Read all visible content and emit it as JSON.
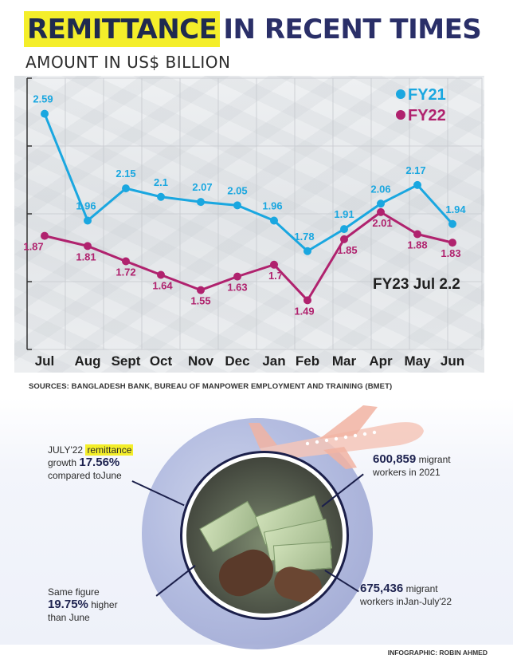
{
  "title": {
    "highlight": "REMITTANCE",
    "rest": "IN RECENT TIMES"
  },
  "subtitle": "AMOUNT IN US$ BILLION",
  "chart_data": {
    "type": "line",
    "categories": [
      "Jul",
      "Aug",
      "Sept",
      "Oct",
      "Nov",
      "Dec",
      "Jan",
      "Feb",
      "Mar",
      "Apr",
      "May",
      "Jun"
    ],
    "series": [
      {
        "name": "FY21",
        "color": "#1aa7e0",
        "values": [
          2.59,
          1.96,
          2.15,
          2.1,
          2.07,
          2.05,
          1.96,
          1.78,
          1.91,
          2.06,
          2.17,
          1.94
        ]
      },
      {
        "name": "FY22",
        "color": "#b0226e",
        "values": [
          1.87,
          1.81,
          1.72,
          1.64,
          1.55,
          1.63,
          1.7,
          1.49,
          1.85,
          2.01,
          1.88,
          1.83
        ]
      }
    ],
    "annotation": "FY23 Jul 2.2",
    "ylim": [
      1.2,
      2.8
    ],
    "grid": true,
    "legend": "top-right"
  },
  "sources": "SOURCES: BANGLADESH BANK, BUREAU OF MANPOWER EMPLOYMENT AND TRAINING (BMET)",
  "annotations": {
    "growth": {
      "prefix": "JULY'22",
      "highlight": "remittance",
      "line2a": "growth",
      "value": "17.56%",
      "line3": "compared toJune"
    },
    "same": {
      "line1": "Same figure",
      "value": "19.75%",
      "line2b": "higher",
      "line3": "than June"
    },
    "workers2021": {
      "value": "600,859",
      "line1b": "migrant",
      "line2": "workers in 2021"
    },
    "workersJanJul": {
      "value": "675,436",
      "line1b": "migrant",
      "line2": "workers inJan-July'22"
    }
  },
  "credit": "INFOGRAPHIC: ROBIN AHMED"
}
